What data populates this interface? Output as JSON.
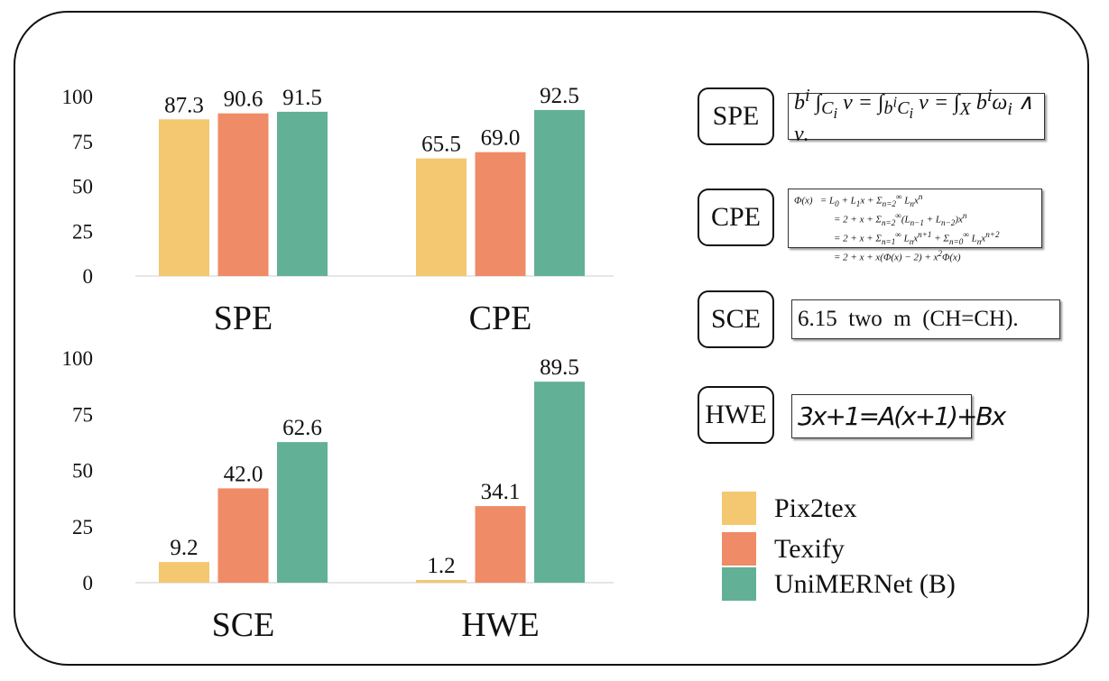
{
  "chart_data": [
    {
      "type": "bar",
      "categories": [
        "SPE",
        "CPE"
      ],
      "ylim": [
        0,
        100
      ],
      "yticks": [
        0,
        25,
        50,
        75,
        100
      ],
      "series": [
        {
          "name": "Pix2tex",
          "values": [
            87.3,
            65.5
          ]
        },
        {
          "name": "Texify",
          "values": [
            90.6,
            69.0
          ]
        },
        {
          "name": "UniMERNet (B)",
          "values": [
            91.5,
            92.5
          ]
        }
      ]
    },
    {
      "type": "bar",
      "categories": [
        "SCE",
        "HWE"
      ],
      "ylim": [
        0,
        100
      ],
      "yticks": [
        0,
        25,
        50,
        75,
        100
      ],
      "series": [
        {
          "name": "Pix2tex",
          "values": [
            9.2,
            1.2
          ]
        },
        {
          "name": "Texify",
          "values": [
            42.0,
            34.1
          ]
        },
        {
          "name": "UniMERNet (B)",
          "values": [
            62.6,
            89.5
          ]
        }
      ]
    }
  ],
  "colors": {
    "Pix2tex": "#F3C871",
    "Texify": "#EF8B67",
    "UniMERNet (B)": "#62B196"
  },
  "legend": [
    "Pix2tex",
    "Texify",
    "UniMERNet (B)"
  ],
  "examples": [
    {
      "tag": "SPE",
      "formula": "b^i ∫_{C_i} ν = ∫_{b^i C_i} ν = ∫_X b^i ω_i ∧ ν."
    },
    {
      "tag": "CPE",
      "formula": "Φ(x) = L_0 + L_1x + Σ_{n=2}^∞ L_n x^n\n= 2 + x + Σ_{n=2}^∞ (L_{n−1} + L_{n−2})x^n\n= 2 + x + Σ_{n=1}^∞ L_n x^{n+1} + Σ_{n=0}^∞ L_n x^{n+2}\n= 2 + x + x(Φ(x) − 2) + x^2Φ(x)"
    },
    {
      "tag": "SCE",
      "formula": "6.15  two  m  (CH=CH)."
    },
    {
      "tag": "HWE",
      "formula": "3x+1=A(x+1)+Bx"
    }
  ]
}
